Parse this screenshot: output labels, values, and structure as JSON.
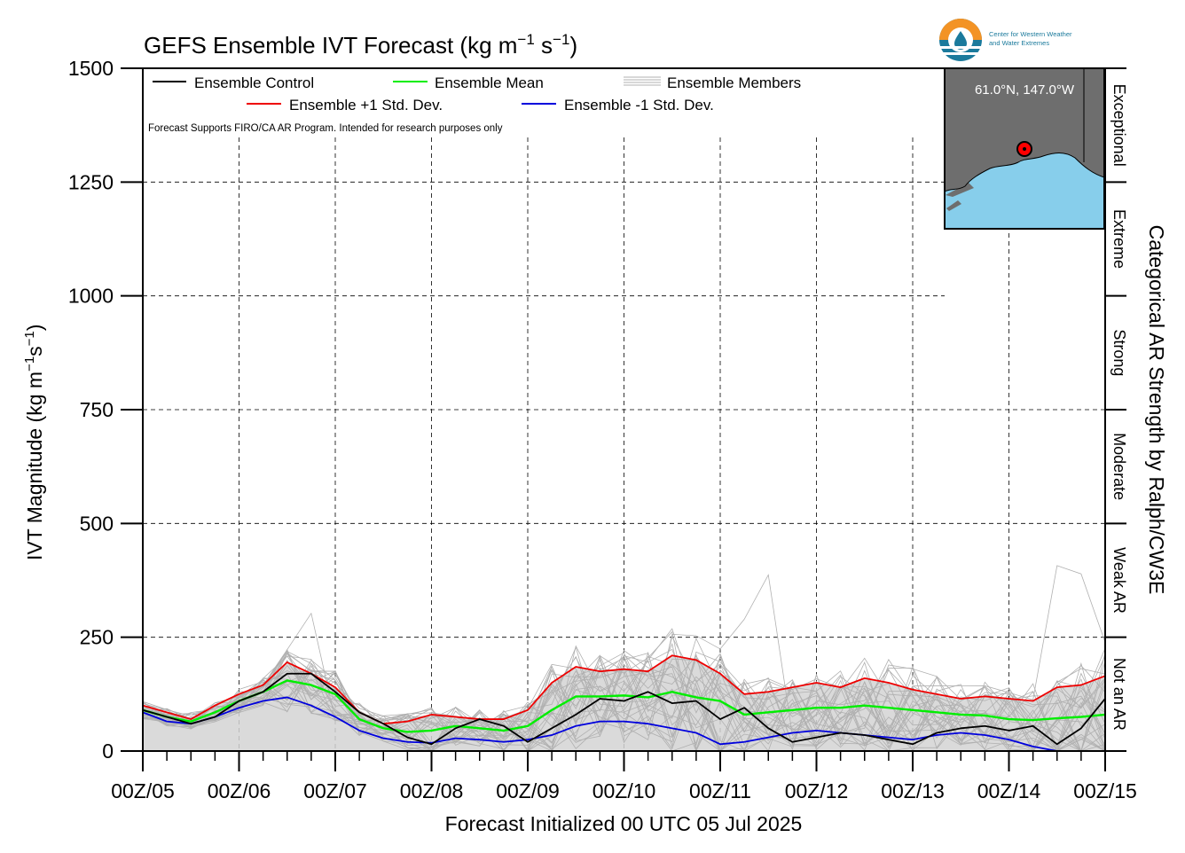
{
  "chart_data": {
    "type": "line",
    "title": "GEFS Ensemble IVT Forecast (kg m",
    "title_sup1": "−1",
    "title_mid": " s",
    "title_sup2": "−1",
    "title_end": ")",
    "ylabel": "IVT Magnitude (kg m",
    "ylabel_sup1": "−1",
    "ylabel_mid": "s",
    "ylabel_sup2": "−1",
    "ylabel_end": ")",
    "xlabel": "Forecast Initialized 00 UTC 05 Jul 2025",
    "right_axis_label": "Categorical AR Strength by Ralph/CW3E",
    "ylim": [
      0,
      1500
    ],
    "xlim": [
      0,
      240
    ],
    "y_ticks": [
      0,
      250,
      500,
      750,
      1000,
      1250,
      1500
    ],
    "y_tick_labels": [
      "0",
      "250",
      "500",
      "750",
      "1000",
      "1250",
      "1500"
    ],
    "x_tick_labels": [
      "00Z/05",
      "00Z/06",
      "00Z/07",
      "00Z/08",
      "00Z/09",
      "00Z/10",
      "00Z/11",
      "00Z/12",
      "00Z/13",
      "00Z/14",
      "00Z/15"
    ],
    "x_tick_hours": [
      0,
      24,
      48,
      72,
      96,
      120,
      144,
      168,
      192,
      216,
      240
    ],
    "categories_ar": [
      {
        "label": "Not an AR",
        "from": 0,
        "to": 250
      },
      {
        "label": "Weak AR",
        "from": 250,
        "to": 500
      },
      {
        "label": "Moderate",
        "from": 500,
        "to": 750
      },
      {
        "label": "Strong",
        "from": 750,
        "to": 1000
      },
      {
        "label": "Extreme",
        "from": 1000,
        "to": 1250
      },
      {
        "label": "Exceptional",
        "from": 1250,
        "to": 1500
      }
    ],
    "legend": {
      "control": "Ensemble Control",
      "mean": "Ensemble Mean",
      "members": "Ensemble Members",
      "plus_std": "Ensemble +1 Std. Dev.",
      "minus_std": "Ensemble -1 Std. Dev."
    },
    "note": "Forecast Supports FIRO/CA AR Program. Intended for research purposes only",
    "grid": true,
    "legend_placement": "top-left",
    "colors": {
      "control": "#000000",
      "mean": "#00ee00",
      "plus_std": "#ee0000",
      "minus_std": "#0000dd",
      "members": "#b0b0b0",
      "spread_fill": "#d3d3d3"
    },
    "x_hours": [
      0,
      6,
      12,
      18,
      24,
      30,
      36,
      42,
      48,
      54,
      60,
      66,
      72,
      78,
      84,
      90,
      96,
      102,
      108,
      114,
      120,
      126,
      132,
      138,
      144,
      150,
      156,
      162,
      168,
      174,
      180,
      186,
      192,
      198,
      204,
      210,
      216,
      222,
      228,
      234,
      240
    ],
    "series": [
      {
        "name": "Ensemble +1 Std. Dev.",
        "key": "plus_std",
        "values": [
          100,
          85,
          70,
          100,
          125,
          145,
          195,
          170,
          140,
          85,
          60,
          65,
          80,
          75,
          70,
          70,
          90,
          150,
          185,
          175,
          180,
          175,
          210,
          200,
          170,
          125,
          130,
          140,
          150,
          140,
          160,
          150,
          135,
          125,
          115,
          120,
          115,
          110,
          140,
          145,
          165
        ]
      },
      {
        "name": "Ensemble Mean",
        "key": "mean",
        "values": [
          90,
          75,
          65,
          85,
          110,
          130,
          155,
          145,
          125,
          70,
          50,
          42,
          45,
          55,
          50,
          45,
          55,
          90,
          120,
          120,
          122,
          118,
          130,
          118,
          110,
          80,
          85,
          90,
          95,
          95,
          100,
          95,
          90,
          85,
          80,
          78,
          70,
          68,
          72,
          75,
          80
        ]
      },
      {
        "name": "Ensemble -1 Std. Dev.",
        "key": "minus_std",
        "values": [
          85,
          65,
          60,
          75,
          95,
          110,
          118,
          100,
          75,
          45,
          28,
          20,
          18,
          28,
          25,
          20,
          25,
          35,
          55,
          65,
          65,
          60,
          50,
          40,
          15,
          20,
          30,
          40,
          45,
          40,
          35,
          30,
          25,
          35,
          40,
          35,
          25,
          10,
          0,
          0,
          0
        ]
      },
      {
        "name": "Ensemble Control",
        "key": "control",
        "values": [
          90,
          75,
          60,
          75,
          110,
          130,
          170,
          170,
          130,
          85,
          60,
          30,
          15,
          50,
          70,
          55,
          20,
          50,
          80,
          115,
          110,
          130,
          105,
          110,
          70,
          95,
          50,
          20,
          30,
          40,
          35,
          25,
          15,
          40,
          50,
          55,
          45,
          55,
          15,
          50,
          115
        ]
      }
    ],
    "member_count": 30
  },
  "inset": {
    "coords_label": "61.0°N, 147.0°W",
    "colors": {
      "land": "#6e6e6e",
      "water": "#87ceeb",
      "marker": "#ff0000"
    }
  },
  "logo": {
    "line1": "Center for Western Weather",
    "line2": "and Water Extremes",
    "colors": {
      "ring_orange": "#f39325",
      "ring_teal": "#1b7a9c",
      "text": "#1b7a9c"
    }
  }
}
